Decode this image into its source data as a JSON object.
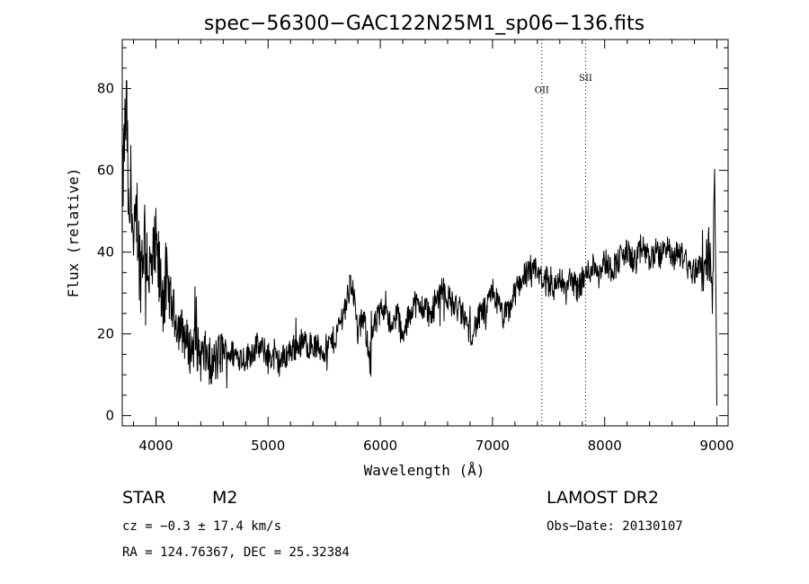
{
  "chart_data": {
    "type": "line",
    "title": "spec−56300−GAC122N25M1_sp06−136.fits",
    "xlabel": "Wavelength (Å)",
    "ylabel": "Flux (relative)",
    "xlim": [
      3700,
      9100
    ],
    "ylim": [
      -2.5,
      92
    ],
    "xticks": [
      4000,
      5000,
      6000,
      7000,
      8000,
      9000
    ],
    "yticks": [
      0,
      20,
      40,
      60,
      80
    ],
    "grid": false,
    "emission_lines": [
      {
        "label": "OII",
        "x": 7440
      },
      {
        "label": "SII",
        "x": 7830
      }
    ],
    "series": [
      {
        "x": [
          3700,
          3720,
          3740,
          3760,
          3780,
          3800,
          3830,
          3860,
          3900,
          3950,
          4000,
          4050,
          4100,
          4150,
          4200,
          4250,
          4300,
          4350,
          4400,
          4450,
          4500,
          4600,
          4700,
          4800,
          4900,
          5000,
          5100,
          5200,
          5300,
          5400,
          5500,
          5600,
          5700,
          5750,
          5800,
          5850,
          5900,
          5950,
          6000,
          6050,
          6100,
          6150,
          6200,
          6250,
          6300,
          6350,
          6400,
          6450,
          6500,
          6550,
          6600,
          6650,
          6700,
          6750,
          6800,
          6850,
          6900,
          6950,
          7000,
          7050,
          7100,
          7150,
          7200,
          7250,
          7300,
          7350,
          7400,
          7450,
          7500,
          7550,
          7600,
          7650,
          7700,
          7750,
          7800,
          7850,
          7900,
          7950,
          8000,
          8050,
          8100,
          8150,
          8200,
          8250,
          8300,
          8350,
          8400,
          8450,
          8500,
          8550,
          8600,
          8650,
          8700,
          8750,
          8800,
          8850,
          8900,
          8930,
          8960,
          8980,
          9000
        ],
        "values": [
          52,
          68,
          75,
          42,
          60,
          38,
          50,
          35,
          45,
          33,
          40,
          30,
          32,
          26,
          22,
          20,
          16,
          18,
          14,
          15,
          12,
          16,
          15,
          14,
          17,
          15,
          13,
          16,
          18,
          17,
          16,
          19,
          28,
          33,
          20,
          24,
          16,
          22,
          25,
          28,
          20,
          26,
          18,
          24,
          28,
          26,
          27,
          24,
          28,
          32,
          29,
          27,
          26,
          24,
          20,
          22,
          25,
          26,
          31,
          27,
          24,
          26,
          30,
          33,
          35,
          34,
          36,
          32,
          33,
          31,
          34,
          30,
          34,
          31,
          33,
          35,
          37,
          36,
          38,
          36,
          37,
          39,
          40,
          38,
          39,
          41,
          38,
          40,
          39,
          42,
          38,
          40,
          39,
          36,
          35,
          38,
          36,
          41,
          28,
          58,
          5
        ]
      }
    ]
  },
  "info": {
    "object_class": "STAR",
    "subclass": "M2",
    "survey": "LAMOST DR2",
    "redshift": "cz = −0.3 ± 17.4 km/s",
    "obs_date": "Obs−Date: 20130107",
    "coords": "RA = 124.76367, DEC =  25.32384"
  }
}
